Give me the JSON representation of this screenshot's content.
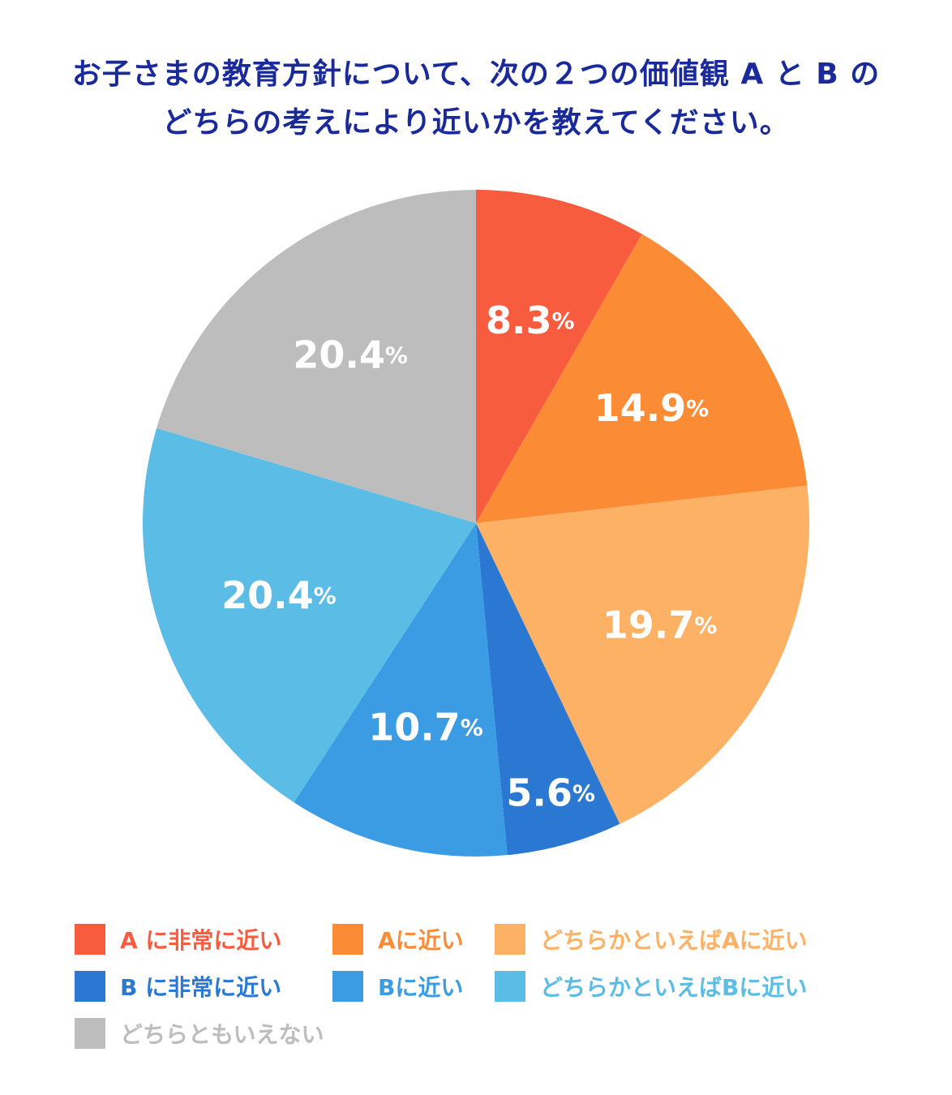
{
  "title": {
    "line1": "お子さまの教育方針について、次の２つの価値観 A と B の",
    "line2": "どちらの考えにより近いかを教えてください。"
  },
  "chart_data": {
    "type": "pie",
    "title": "お子さまの教育方針について、次の２つの価値観 A と B の どちらの考えにより近いかを教えてください。",
    "unit": "%",
    "start": "12 o'clock, clockwise",
    "slices": [
      {
        "name": "A に非常に近い",
        "value": 8.3,
        "label": "8.3",
        "color": "#f85c3e"
      },
      {
        "name": "Aに近い",
        "value": 14.9,
        "label": "14.9",
        "color": "#fb8b34"
      },
      {
        "name": "どちらかといえばAに近い",
        "value": 19.7,
        "label": "19.7",
        "color": "#fcb165"
      },
      {
        "name": "B に非常に近い",
        "value": 5.6,
        "label": "5.6",
        "color": "#2a78d2"
      },
      {
        "name": "Bに近い",
        "value": 10.7,
        "label": "10.7",
        "color": "#3b9ce3"
      },
      {
        "name": "どちらかといえばBに近い",
        "value": 20.4,
        "label": "20.4",
        "color": "#5bbde6"
      },
      {
        "name": "どちらともいえない",
        "value": 20.4,
        "label": "20.4",
        "color": "#bdbdbd"
      }
    ]
  },
  "legend": {
    "items": [
      {
        "label": "A に非常に近い",
        "color": "#f85c3e"
      },
      {
        "label": "Aに近い",
        "color": "#fb8b34"
      },
      {
        "label": "どちらかといえばAに近い",
        "color": "#fcb165"
      },
      {
        "label": "B に非常に近い",
        "color": "#2a78d2"
      },
      {
        "label": "Bに近い",
        "color": "#3b9ce3"
      },
      {
        "label": "どちらかといえばBに近い",
        "color": "#5bbde6"
      },
      {
        "label": "どちらともいえない",
        "color": "#bdbdbd"
      }
    ]
  }
}
